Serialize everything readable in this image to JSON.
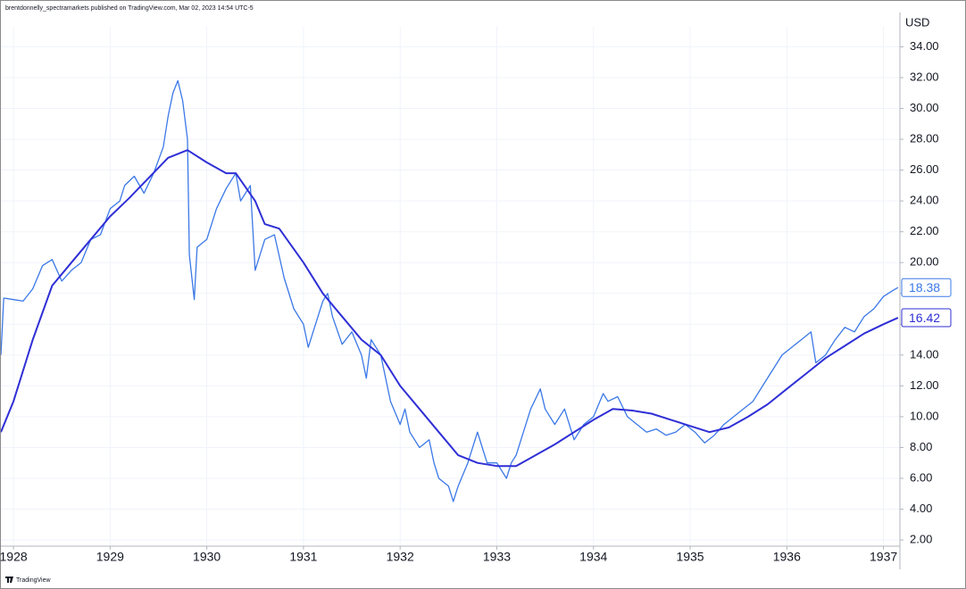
{
  "chart_data": {
    "type": "line",
    "attribution": "brentdonnelly_spectramarkets published on TradingView.com, Mar 02, 2023 14:54 UTC-5",
    "unit": "USD",
    "watermark": "TradingView",
    "grid": true,
    "xlim": [
      1927.87,
      1937.17
    ],
    "xticks": [
      1928,
      1929,
      1930,
      1931,
      1932,
      1933,
      1934,
      1935,
      1936,
      1937
    ],
    "ylim": [
      1.6,
      35.3
    ],
    "yticks": [
      {
        "value": 2,
        "label": "2.00"
      },
      {
        "value": 4,
        "label": "4.00"
      },
      {
        "value": 6,
        "label": "6.00"
      },
      {
        "value": 8,
        "label": "8.00"
      },
      {
        "value": 10,
        "label": "10.00"
      },
      {
        "value": 12,
        "label": "12.00"
      },
      {
        "value": 14,
        "label": "14.00"
      },
      {
        "value": 16,
        "label": "16.00"
      },
      {
        "value": 18,
        "label": "18.00"
      },
      {
        "value": 20,
        "label": "20.00"
      },
      {
        "value": 22,
        "label": "22.00"
      },
      {
        "value": 24,
        "label": "24.00"
      },
      {
        "value": 26,
        "label": "26.00"
      },
      {
        "value": 28,
        "label": "28.00"
      },
      {
        "value": 30,
        "label": "30.00"
      },
      {
        "value": 32,
        "label": "32.00"
      },
      {
        "value": 34,
        "label": "34.00"
      }
    ],
    "series": [
      {
        "color": "#3b78e7",
        "x": [
          1927.87,
          1927.9,
          1928.0,
          1928.1,
          1928.2,
          1928.3,
          1928.4,
          1928.5,
          1928.6,
          1928.7,
          1928.8,
          1928.9,
          1929.0,
          1929.1,
          1929.15,
          1929.25,
          1929.35,
          1929.45,
          1929.55,
          1929.6,
          1929.65,
          1929.7,
          1929.75,
          1929.8,
          1929.82,
          1929.87,
          1929.9,
          1930.0,
          1930.1,
          1930.2,
          1930.3,
          1930.35,
          1930.45,
          1930.5,
          1930.6,
          1930.7,
          1930.8,
          1930.9,
          1931.0,
          1931.05,
          1931.1,
          1931.2,
          1931.25,
          1931.3,
          1931.4,
          1931.5,
          1931.6,
          1931.65,
          1931.7,
          1931.8,
          1931.9,
          1932.0,
          1932.05,
          1932.1,
          1932.2,
          1932.3,
          1932.35,
          1932.4,
          1932.5,
          1932.55,
          1932.6,
          1932.7,
          1932.8,
          1932.85,
          1932.9,
          1933.0,
          1933.05,
          1933.1,
          1933.15,
          1933.2,
          1933.3,
          1933.35,
          1933.45,
          1933.5,
          1933.6,
          1933.7,
          1933.8,
          1933.9,
          1934.0,
          1934.1,
          1934.15,
          1934.25,
          1934.35,
          1934.45,
          1934.55,
          1934.65,
          1934.75,
          1934.85,
          1934.95,
          1935.05,
          1935.15,
          1935.25,
          1935.35,
          1935.45,
          1935.55,
          1935.65,
          1935.75,
          1935.85,
          1935.95,
          1936.05,
          1936.15,
          1936.25,
          1936.3,
          1936.4,
          1936.5,
          1936.6,
          1936.7,
          1936.8,
          1936.9,
          1937.0,
          1937.1,
          1937.15
        ],
        "values": [
          14.0,
          17.7,
          17.6,
          17.5,
          18.3,
          19.8,
          20.2,
          18.8,
          19.5,
          20.0,
          21.5,
          21.8,
          23.5,
          24.0,
          25.0,
          25.6,
          24.5,
          25.8,
          27.5,
          29.5,
          31.0,
          31.8,
          30.5,
          28.0,
          20.5,
          17.6,
          21.0,
          21.5,
          23.5,
          24.8,
          25.8,
          24.0,
          25.0,
          19.5,
          21.5,
          21.8,
          19.0,
          17.0,
          16.0,
          14.5,
          15.5,
          17.5,
          18.0,
          16.5,
          14.7,
          15.5,
          14.0,
          12.5,
          15.0,
          14.0,
          11.0,
          9.5,
          10.5,
          9.0,
          8.0,
          8.5,
          7.0,
          6.0,
          5.5,
          4.5,
          5.5,
          7.0,
          9.0,
          8.0,
          7.0,
          7.0,
          6.5,
          6.0,
          7.0,
          7.5,
          9.5,
          10.5,
          11.8,
          10.5,
          9.5,
          10.5,
          8.5,
          9.5,
          10.0,
          11.5,
          11.0,
          11.3,
          10.0,
          9.5,
          9.0,
          9.2,
          8.8,
          9.0,
          9.5,
          9.0,
          8.3,
          8.8,
          9.5,
          10.0,
          10.5,
          11.0,
          12.0,
          13.0,
          14.0,
          14.5,
          15.0,
          15.5,
          13.5,
          14.0,
          15.0,
          15.8,
          15.5,
          16.5,
          17.0,
          17.8,
          18.2,
          18.38
        ]
      },
      {
        "color": "#2f2fd6",
        "x": [
          1927.87,
          1928.0,
          1928.2,
          1928.4,
          1928.6,
          1928.8,
          1929.0,
          1929.2,
          1929.4,
          1929.6,
          1929.8,
          1930.0,
          1930.2,
          1930.3,
          1930.5,
          1930.6,
          1930.75,
          1931.0,
          1931.2,
          1931.4,
          1931.6,
          1931.8,
          1932.0,
          1932.2,
          1932.4,
          1932.6,
          1932.8,
          1933.0,
          1933.2,
          1933.4,
          1933.6,
          1933.8,
          1934.0,
          1934.2,
          1934.4,
          1934.6,
          1934.8,
          1935.0,
          1935.2,
          1935.4,
          1935.6,
          1935.8,
          1936.0,
          1936.2,
          1936.4,
          1936.6,
          1936.8,
          1937.0,
          1937.15
        ],
        "values": [
          9.0,
          11.0,
          15.0,
          18.5,
          20.0,
          21.5,
          23.0,
          24.2,
          25.5,
          26.8,
          27.3,
          26.5,
          25.8,
          25.8,
          24.0,
          22.5,
          22.2,
          20.0,
          18.0,
          16.5,
          15.0,
          14.0,
          12.0,
          10.5,
          9.0,
          7.5,
          7.0,
          6.8,
          6.8,
          7.5,
          8.2,
          9.0,
          9.8,
          10.5,
          10.4,
          10.2,
          9.8,
          9.4,
          9.0,
          9.3,
          10.0,
          10.8,
          11.8,
          12.8,
          13.8,
          14.6,
          15.4,
          16.0,
          16.42
        ]
      }
    ]
  }
}
